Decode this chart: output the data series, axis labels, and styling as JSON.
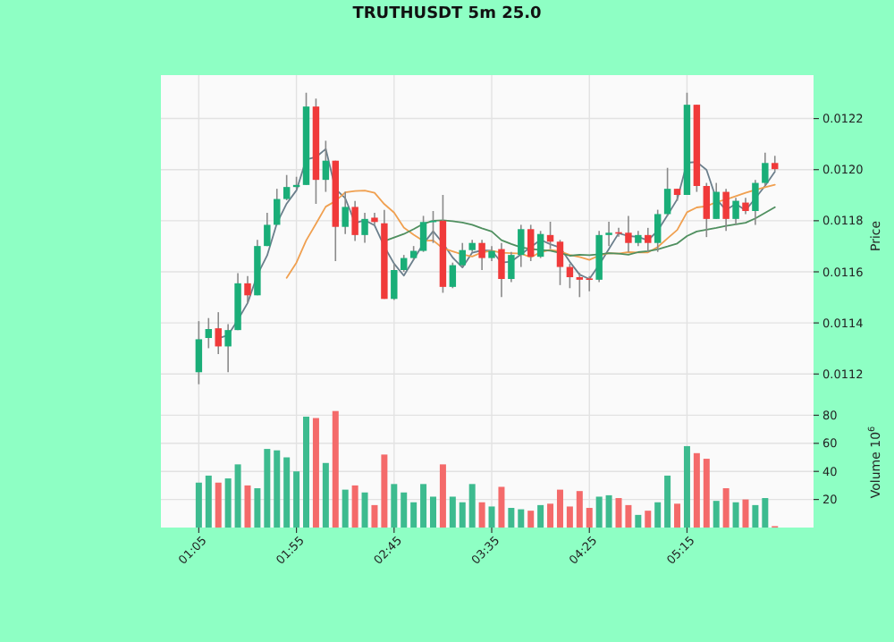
{
  "chart_data": [
    {
      "type": "candlestick",
      "title": "TRUTHUSDT 5m 25.0",
      "ylabel": "Price",
      "tick_labels": "y",
      "grid": true,
      "x": [
        1.0833,
        1.1667,
        1.25,
        1.3333,
        1.4167,
        1.5,
        1.5833,
        1.6667,
        1.75,
        1.8333,
        1.9167,
        2,
        2.0833,
        2.1667,
        2.25,
        2.3333,
        2.4167,
        2.5,
        2.5833,
        2.6667,
        2.75,
        2.8333,
        2.9167,
        3,
        3.0833,
        3.1667,
        3.25,
        3.3333,
        3.4167,
        3.5,
        3.5833,
        3.6667,
        3.75,
        3.8333,
        3.9167,
        4,
        4.0833,
        4.1667,
        4.25,
        4.3333,
        4.4167,
        4.5,
        4.5833,
        4.6667,
        4.75,
        4.8333,
        4.9167,
        5,
        5.0833,
        5.1667,
        5.25,
        5.3333,
        5.4167,
        5.5,
        5.5833,
        5.6667,
        5.75,
        5.8333,
        5.9167,
        6
      ],
      "xlim": [
        0.76,
        6.33
      ],
      "xticks": [
        {
          "value": 1.0833,
          "label": null
        },
        {
          "value": 1.9167,
          "label": null
        },
        {
          "value": 2.75,
          "label": null
        },
        {
          "value": 3.5833,
          "label": null
        },
        {
          "value": 4.4167,
          "label": null
        },
        {
          "value": 5.25,
          "label": null
        }
      ],
      "ylim": [
        0.01111,
        0.01237
      ],
      "yticks": [
        {
          "value": 0.0112,
          "label": "0.0112"
        },
        {
          "value": 0.0114,
          "label": "0.0114"
        },
        {
          "value": 0.0116,
          "label": "0.0116"
        },
        {
          "value": 0.0118,
          "label": "0.0118"
        },
        {
          "value": 0.012,
          "label": "0.0120"
        },
        {
          "value": 0.0122,
          "label": "0.0122"
        }
      ],
      "ohlc": [
        [
          0.011207,
          0.011407,
          0.01116,
          0.011336
        ],
        [
          0.011341,
          0.011419,
          0.011301,
          0.011376
        ],
        [
          0.011379,
          0.011442,
          0.011278,
          0.011308
        ],
        [
          0.011308,
          0.011395,
          0.011207,
          0.011372
        ],
        [
          0.011372,
          0.011595,
          0.011372,
          0.011555
        ],
        [
          0.011555,
          0.011583,
          0.011478,
          0.011508
        ],
        [
          0.011508,
          0.011725,
          0.011508,
          0.011701
        ],
        [
          0.011701,
          0.011831,
          0.011701,
          0.011784
        ],
        [
          0.011784,
          0.011925,
          0.011784,
          0.011885
        ],
        [
          0.011885,
          0.011979,
          0.01188,
          0.011932
        ],
        [
          0.011932,
          0.011972,
          0.011925,
          0.01194
        ],
        [
          0.01194,
          0.012301,
          0.01194,
          0.012247
        ],
        [
          0.012247,
          0.012278,
          0.011866,
          0.01196
        ],
        [
          0.01196,
          0.012113,
          0.011913,
          0.012035
        ],
        [
          0.012035,
          0.012035,
          0.011642,
          0.011776
        ],
        [
          0.011776,
          0.011913,
          0.011748,
          0.011854
        ],
        [
          0.011854,
          0.011877,
          0.011721,
          0.011744
        ],
        [
          0.011744,
          0.011831,
          0.011714,
          0.011807
        ],
        [
          0.011812,
          0.011831,
          0.011784,
          0.011795
        ],
        [
          0.01179,
          0.011842,
          0.011494,
          0.011494
        ],
        [
          0.011494,
          0.011631,
          0.01149,
          0.011607
        ],
        [
          0.011607,
          0.011666,
          0.0116,
          0.011654
        ],
        [
          0.011654,
          0.011701,
          0.011647,
          0.011682
        ],
        [
          0.011682,
          0.011819,
          0.011678,
          0.011795
        ],
        [
          0.011795,
          0.011838,
          0.011713,
          0.0118
        ],
        [
          0.0118,
          0.011901,
          0.011518,
          0.011541
        ],
        [
          0.011541,
          0.011636,
          0.011536,
          0.011626
        ],
        [
          0.011626,
          0.011713,
          0.011619,
          0.011685
        ],
        [
          0.011685,
          0.011725,
          0.011678,
          0.011713
        ],
        [
          0.011713,
          0.011725,
          0.011607,
          0.011654
        ],
        [
          0.011654,
          0.011701,
          0.011642,
          0.011682
        ],
        [
          0.011689,
          0.011713,
          0.011501,
          0.011572
        ],
        [
          0.011572,
          0.011678,
          0.01156,
          0.011666
        ],
        [
          0.011666,
          0.011784,
          0.011619,
          0.011767
        ],
        [
          0.011767,
          0.011784,
          0.011642,
          0.011659
        ],
        [
          0.011659,
          0.01176,
          0.011654,
          0.011748
        ],
        [
          0.011744,
          0.011796,
          0.01169,
          0.011718
        ],
        [
          0.011718,
          0.011725,
          0.011548,
          0.011619
        ],
        [
          0.011619,
          0.011631,
          0.011536,
          0.011579
        ],
        [
          0.011579,
          0.011596,
          0.011501,
          0.011569
        ],
        [
          0.011574,
          0.011583,
          0.011524,
          0.011569
        ],
        [
          0.011569,
          0.01176,
          0.01156,
          0.011744
        ],
        [
          0.011744,
          0.011796,
          0.011701,
          0.011753
        ],
        [
          0.011755,
          0.011772,
          0.011737,
          0.011753
        ],
        [
          0.011753,
          0.011819,
          0.011678,
          0.011713
        ],
        [
          0.011713,
          0.01176,
          0.011701,
          0.011744
        ],
        [
          0.011744,
          0.011772,
          0.011678,
          0.011713
        ],
        [
          0.011713,
          0.011843,
          0.011678,
          0.011826
        ],
        [
          0.011826,
          0.012007,
          0.011819,
          0.011925
        ],
        [
          0.011925,
          0.011925,
          0.011878,
          0.011901
        ],
        [
          0.011901,
          0.012301,
          0.011901,
          0.012254
        ],
        [
          0.012254,
          0.012254,
          0.011913,
          0.011936
        ],
        [
          0.011936,
          0.011948,
          0.011736,
          0.011807
        ],
        [
          0.011807,
          0.011948,
          0.011807,
          0.011913
        ],
        [
          0.011913,
          0.011925,
          0.01176,
          0.011807
        ],
        [
          0.011807,
          0.01189,
          0.011784,
          0.011878
        ],
        [
          0.011871,
          0.01189,
          0.011826,
          0.011838
        ],
        [
          0.011838,
          0.01196,
          0.011784,
          0.011948
        ],
        [
          0.011948,
          0.012066,
          0.011936,
          0.012026
        ],
        [
          0.012026,
          0.012054,
          0.011995,
          0.012002
        ]
      ],
      "colors": [
        "#1aae78",
        "#1aae78",
        "#f03a3a",
        "#1aae78",
        "#1aae78",
        "#f03a3a",
        "#1aae78",
        "#1aae78",
        "#1aae78",
        "#1aae78",
        "#1aae78",
        "#1aae78",
        "#f03a3a",
        "#1aae78",
        "#f03a3a",
        "#1aae78",
        "#f03a3a",
        "#1aae78",
        "#f03a3a",
        "#f03a3a",
        "#1aae78",
        "#1aae78",
        "#1aae78",
        "#1aae78",
        "#1aae78",
        "#f03a3a",
        "#1aae78",
        "#1aae78",
        "#1aae78",
        "#f03a3a",
        "#1aae78",
        "#f03a3a",
        "#1aae78",
        "#1aae78",
        "#f03a3a",
        "#1aae78",
        "#f03a3a",
        "#f03a3a",
        "#f03a3a",
        "#f03a3a",
        "#f03a3a",
        "#1aae78",
        "#1aae78",
        "#f03a3a",
        "#f03a3a",
        "#1aae78",
        "#f03a3a",
        "#1aae78",
        "#1aae78",
        "#f03a3a",
        "#1aae78",
        "#f03a3a",
        "#f03a3a",
        "#1aae78",
        "#f03a3a",
        "#1aae78",
        "#f03a3a",
        "#1aae78",
        "#1aae78",
        "#f03a3a"
      ],
      "series": [
        {
          "type": "line",
          "color": "#6b7f8c",
          "values": [
            null,
            null,
            0.01134,
            0.011352,
            0.011412,
            0.011478,
            0.011588,
            0.011664,
            0.01179,
            0.011867,
            0.011919,
            0.01204,
            0.012049,
            0.012081,
            0.011924,
            0.011888,
            0.011791,
            0.011802,
            0.011782,
            0.011699,
            0.011632,
            0.011585,
            0.011648,
            0.01171,
            0.011759,
            0.011712,
            0.011656,
            0.011617,
            0.011675,
            0.011684,
            0.011683,
            0.011636,
            0.01164,
            0.011668,
            0.011697,
            0.011725,
            0.011708,
            0.011695,
            0.011639,
            0.011589,
            0.011572,
            0.011627,
            0.011689,
            0.011751,
            0.01174,
            0.011737,
            0.011723,
            0.011761,
            0.011821,
            0.011884,
            0.012027,
            0.01203,
            0.011999,
            0.011885,
            0.011842,
            0.011866,
            0.011841,
            0.011888,
            0.011937,
            0.011992
          ]
        },
        {
          "type": "line",
          "color": "#f0a050",
          "values": [
            null,
            null,
            null,
            null,
            null,
            null,
            null,
            null,
            null,
            0.011576,
            0.011636,
            0.011723,
            0.011788,
            0.011855,
            0.011877,
            0.011911,
            0.011916,
            0.011918,
            0.011909,
            0.011865,
            0.011832,
            0.011773,
            0.011745,
            0.011721,
            0.011723,
            0.011692,
            0.01168,
            0.011668,
            0.01166,
            0.011676,
            0.011683,
            0.011675,
            0.011673,
            0.011671,
            0.011657,
            0.011677,
            0.011686,
            0.01168,
            0.011666,
            0.011658,
            0.011647,
            0.011664,
            0.011673,
            0.011671,
            0.011677,
            0.011676,
            0.011676,
            0.011697,
            0.011731,
            0.011764,
            0.011833,
            0.011852,
            0.011857,
            0.011873,
            0.011883,
            0.011896,
            0.011909,
            0.011921,
            0.011931,
            0.011941
          ]
        },
        {
          "type": "line",
          "color": "#4f8f5f",
          "values": [
            null,
            null,
            null,
            null,
            null,
            null,
            null,
            null,
            null,
            null,
            null,
            null,
            null,
            null,
            null,
            null,
            null,
            null,
            null,
            0.01172,
            0.011734,
            0.011748,
            0.011767,
            0.011788,
            0.0118,
            0.011802,
            0.011798,
            0.011793,
            0.011784,
            0.01177,
            0.011758,
            0.011724,
            0.011709,
            0.011696,
            0.01169,
            0.011685,
            0.011683,
            0.011674,
            0.011663,
            0.011667,
            0.011665,
            0.011669,
            0.011673,
            0.011671,
            0.011667,
            0.011677,
            0.011681,
            0.011688,
            0.011699,
            0.011711,
            0.01174,
            0.011758,
            0.011765,
            0.011772,
            0.01178,
            0.011786,
            0.011792,
            0.011809,
            0.011831,
            0.011853
          ]
        }
      ]
    },
    {
      "type": "bar",
      "ylabel": "Volume 10$^{6}$",
      "grid": true,
      "x": [
        1.0833,
        1.1667,
        1.25,
        1.3333,
        1.4167,
        1.5,
        1.5833,
        1.6667,
        1.75,
        1.8333,
        1.9167,
        2,
        2.0833,
        2.1667,
        2.25,
        2.3333,
        2.4167,
        2.5,
        2.5833,
        2.6667,
        2.75,
        2.8333,
        2.9167,
        3,
        3.0833,
        3.1667,
        3.25,
        3.3333,
        3.4167,
        3.5,
        3.5833,
        3.6667,
        3.75,
        3.8333,
        3.9167,
        4,
        4.0833,
        4.1667,
        4.25,
        4.3333,
        4.4167,
        4.5,
        4.5833,
        4.6667,
        4.75,
        4.8333,
        4.9167,
        5,
        5.0833,
        5.1667,
        5.25,
        5.3333,
        5.4167,
        5.5,
        5.5833,
        5.6667,
        5.75,
        5.8333,
        5.9167,
        6
      ],
      "xlim": [
        0.76,
        6.33
      ],
      "xticks": [
        {
          "value": 1.0833,
          "label": "01:05"
        },
        {
          "value": 1.9167,
          "label": "01:55"
        },
        {
          "value": 2.75,
          "label": "02:45"
        },
        {
          "value": 3.5833,
          "label": "03:35"
        },
        {
          "value": 4.4167,
          "label": "04:25"
        },
        {
          "value": 5.25,
          "label": "05:15"
        }
      ],
      "ylim": [
        0,
        93
      ],
      "yticks": [
        20,
        40,
        60,
        80
      ],
      "values": [
        32,
        37,
        32,
        35,
        45,
        30,
        28,
        56,
        55,
        50,
        40,
        79,
        78,
        46,
        83,
        27,
        30,
        25,
        16,
        52,
        31,
        25,
        18,
        31,
        22,
        45,
        22,
        18,
        31,
        18,
        15,
        29,
        14,
        13,
        12,
        16,
        17,
        27,
        15,
        26,
        14,
        22,
        23,
        21,
        16,
        9,
        12,
        18,
        37,
        17,
        58,
        53,
        49,
        19,
        28,
        18,
        20,
        16,
        21,
        1
      ],
      "colors": [
        "#3dbb8f",
        "#3dbb8f",
        "#f46a6a",
        "#3dbb8f",
        "#3dbb8f",
        "#f46a6a",
        "#3dbb8f",
        "#3dbb8f",
        "#3dbb8f",
        "#3dbb8f",
        "#3dbb8f",
        "#3dbb8f",
        "#f46a6a",
        "#3dbb8f",
        "#f46a6a",
        "#3dbb8f",
        "#f46a6a",
        "#3dbb8f",
        "#f46a6a",
        "#f46a6a",
        "#3dbb8f",
        "#3dbb8f",
        "#3dbb8f",
        "#3dbb8f",
        "#3dbb8f",
        "#f46a6a",
        "#3dbb8f",
        "#3dbb8f",
        "#3dbb8f",
        "#f46a6a",
        "#3dbb8f",
        "#f46a6a",
        "#3dbb8f",
        "#3dbb8f",
        "#f46a6a",
        "#3dbb8f",
        "#f46a6a",
        "#f46a6a",
        "#f46a6a",
        "#f46a6a",
        "#f46a6a",
        "#3dbb8f",
        "#3dbb8f",
        "#f46a6a",
        "#f46a6a",
        "#3dbb8f",
        "#f46a6a",
        "#3dbb8f",
        "#3dbb8f",
        "#f46a6a",
        "#3dbb8f",
        "#f46a6a",
        "#f46a6a",
        "#3dbb8f",
        "#f46a6a",
        "#3dbb8f",
        "#f46a6a",
        "#3dbb8f",
        "#3dbb8f",
        "#f46a6a"
      ]
    }
  ]
}
